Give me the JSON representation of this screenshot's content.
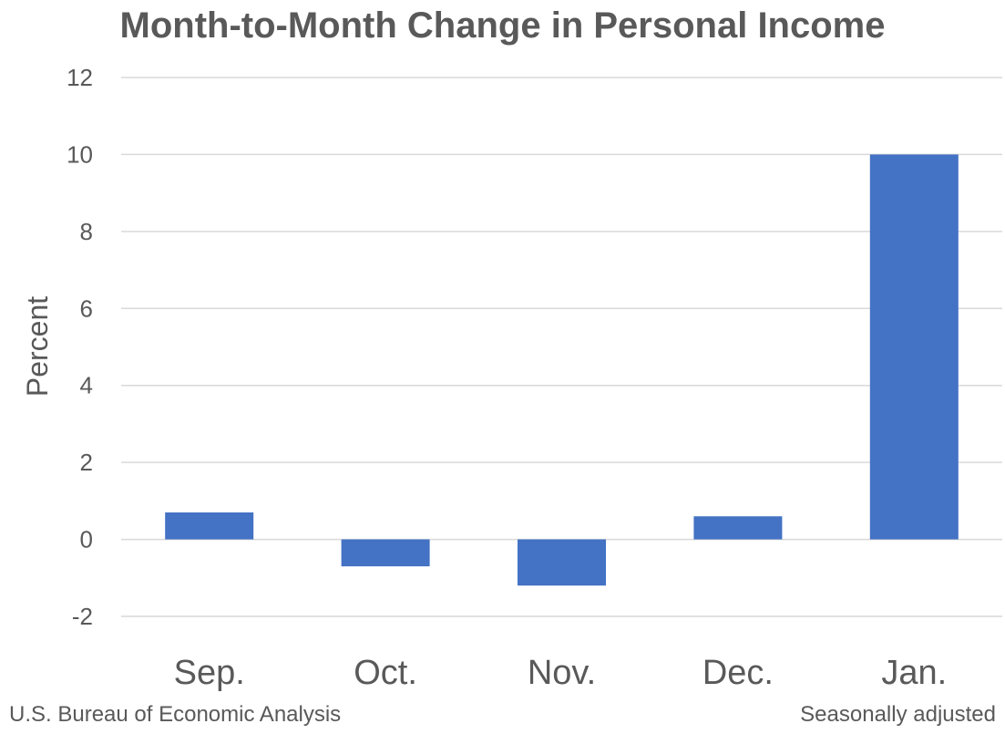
{
  "chart_data": {
    "type": "bar",
    "title": "Month-to-Month Change in Personal Income",
    "xlabel": "",
    "ylabel": "Percent",
    "categories": [
      "Sep.",
      "Oct.",
      "Nov.",
      "Dec.",
      "Jan."
    ],
    "values": [
      0.7,
      -0.7,
      -1.2,
      0.6,
      10.0
    ],
    "ylim": [
      -2,
      12
    ],
    "yticks": [
      "-2",
      "0",
      "2",
      "4",
      "6",
      "8",
      "10",
      "12"
    ],
    "grid": true,
    "bar_color": "#4472C4"
  },
  "footer": {
    "source": "U.S. Bureau of Economic Analysis",
    "note": "Seasonally adjusted"
  }
}
